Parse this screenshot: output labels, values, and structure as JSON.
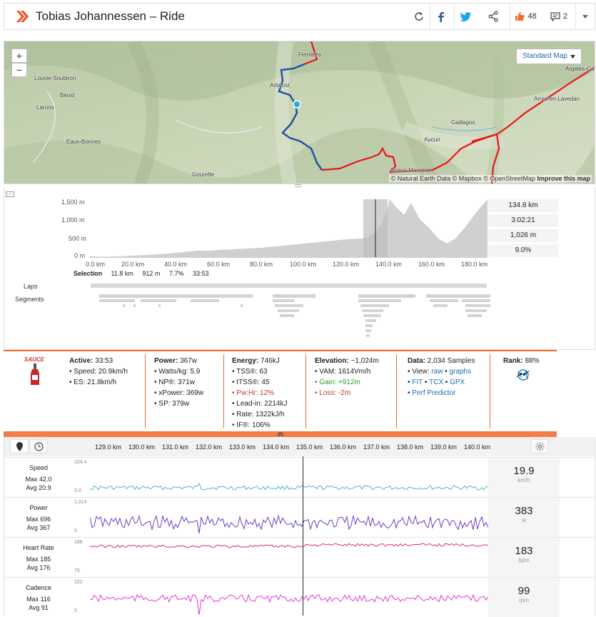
{
  "header": {
    "title": "Tobias Johannessen – Ride",
    "kudos_count": "48",
    "comments_count": "2"
  },
  "map": {
    "style_button": "Standard Map",
    "zoom_in": "+",
    "zoom_out": "−",
    "attribution": "© Natural Earth Data © Mapbox © OpenStreetMap",
    "improve": "Improve this map",
    "places": [
      "Ferrières",
      "Argelès-Gazost",
      "Louvie-Soubiron",
      "Béost",
      "Arbéost",
      "Laruns",
      "Arras-en-Lavedan",
      "Gaillagos",
      "Eaux-Bonnes",
      "Aucun",
      "Gourette",
      "Arrens-Marsous"
    ]
  },
  "elevation": {
    "y_ticks": [
      "1,500 m",
      "1,000 m",
      "500 m",
      "0 m"
    ],
    "x_ticks": [
      "0.0 km",
      "20.0 km",
      "40.0 km",
      "60.0 km",
      "80.0 km",
      "100.0 km",
      "120.0 km",
      "140.0 km",
      "160.0 km",
      "180.0 km"
    ],
    "stats": [
      "134.8 km",
      "3:02:21",
      "1,026 m",
      "9.0%"
    ],
    "selection": {
      "label": "Selection",
      "distance": "11.8 km",
      "gain": "912 m",
      "grade": "7.7%",
      "time": "33:53"
    },
    "laps_label": "Laps",
    "segments_label": "Segments"
  },
  "stats": {
    "sauce_label": "SAUCE",
    "active": {
      "title": "Active:",
      "value": "33:53",
      "items": [
        "Speed: 20.9km/h",
        "ES: 21.8km/h"
      ]
    },
    "power": {
      "title": "Power:",
      "value": "367w",
      "items": [
        "Watts/kg: 5.9",
        "NP®: 371w",
        "xPower: 369w",
        "SP: 379w"
      ]
    },
    "energy": {
      "title": "Energy:",
      "value": "746kJ",
      "items": [
        "TSS®: 63",
        "tTSS®: 45",
        "Pw:Hr: 12%",
        "Lead-in: 2214kJ",
        "Rate: 1322kJ/h",
        "IF®: 106%"
      ]
    },
    "elevation": {
      "title": "Elevation:",
      "value": "~1,024m",
      "items": [
        "VAM: 1614Vm/h",
        "Gain: +912m",
        "Loss: -2m"
      ]
    },
    "data": {
      "title": "Data:",
      "value": "2,034 Samples",
      "view_label": "View:",
      "raw": "raw",
      "graphs": "graphs",
      "fit": "FIT",
      "tcx": "TCX",
      "gpx": "GPX",
      "perf": "Perf Predictor"
    },
    "rank": {
      "title": "Rank:",
      "value": "88%"
    }
  },
  "chart": {
    "x_ticks": [
      "129.0 km",
      "130.0 km",
      "131.0 km",
      "132.0 km",
      "133.0 km",
      "134.0 km",
      "135.0 km",
      "136.0 km",
      "137.0 km",
      "138.0 km",
      "139.0 km",
      "140.0 km"
    ],
    "series": [
      {
        "name": "Speed",
        "max": "Max 42.0",
        "avg": "Avg 20.9",
        "ymax": "104.4",
        "ymin": "0.0",
        "current": "19.9",
        "unit": "km/h",
        "color": "#4fb3d0"
      },
      {
        "name": "Power",
        "max": "Max 696",
        "avg": "Avg 367",
        "ymax": "1,014",
        "ymin": "0",
        "current": "383",
        "unit": "w",
        "color": "#6a3fc8"
      },
      {
        "name": "Heart Rate",
        "max": "Max 185",
        "avg": "Avg 176",
        "ymax": "188",
        "ymin": "75",
        "current": "183",
        "unit": "bpm",
        "color": "#d62f6a"
      },
      {
        "name": "Cadence",
        "max": "Max 116",
        "avg": "Avg 91",
        "ymax": "152",
        "ymin": "0",
        "current": "99",
        "unit": "rpm",
        "color": "#e03ad8"
      }
    ]
  }
}
